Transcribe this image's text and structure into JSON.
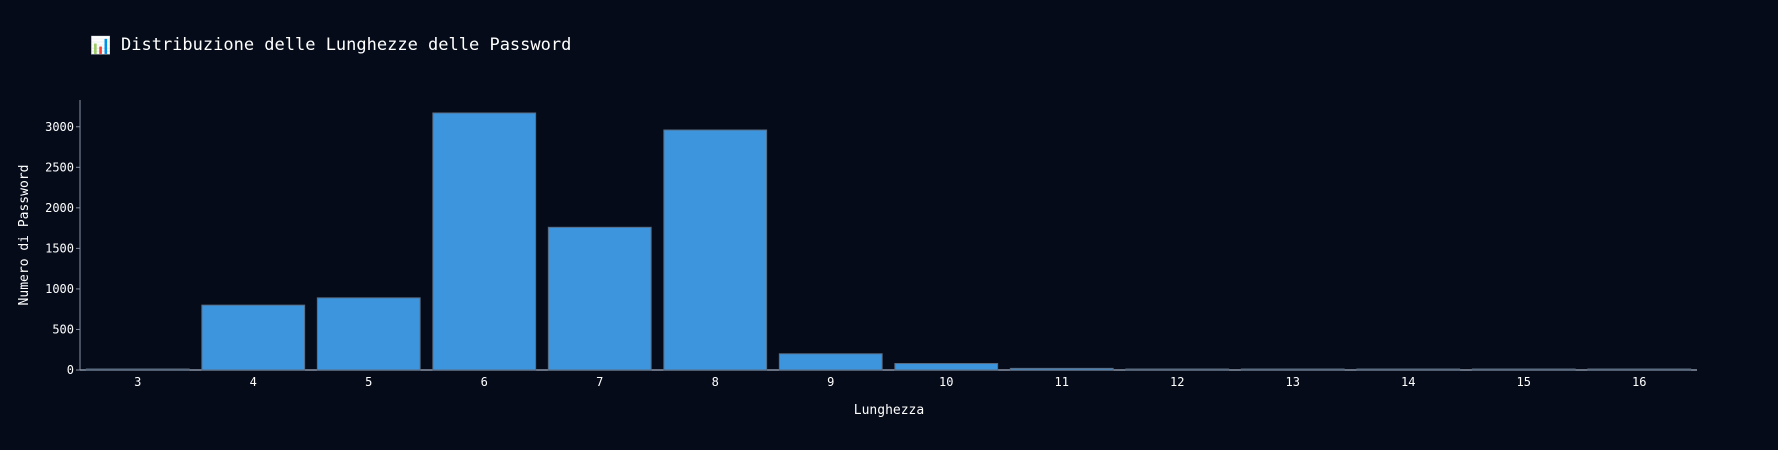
{
  "chart_data": {
    "type": "bar",
    "title": "Distribuzione delle Lunghezze delle Password",
    "title_icon": "bar-chart-icon",
    "xlabel": "Lunghezza",
    "ylabel": "Numero di Password",
    "categories": [
      "3",
      "4",
      "5",
      "6",
      "7",
      "8",
      "9",
      "10",
      "11",
      "12",
      "13",
      "14",
      "15",
      "16"
    ],
    "values": [
      2,
      800,
      890,
      3170,
      1760,
      2960,
      200,
      80,
      20,
      8,
      3,
      10,
      3,
      3
    ],
    "ylim": [
      0,
      3330
    ],
    "yticks": [
      "0",
      "500",
      "1000",
      "1500",
      "2000",
      "2500",
      "3000"
    ],
    "ytick_values": [
      0,
      500,
      1000,
      1500,
      2000,
      2500,
      3000
    ],
    "grid": false,
    "legend": "none",
    "colors": {
      "background": "#050b19",
      "bar": "#3d95de",
      "bar_outline": "#5a6b80",
      "text": "#ffffff",
      "axis": "#8a94a6"
    }
  }
}
